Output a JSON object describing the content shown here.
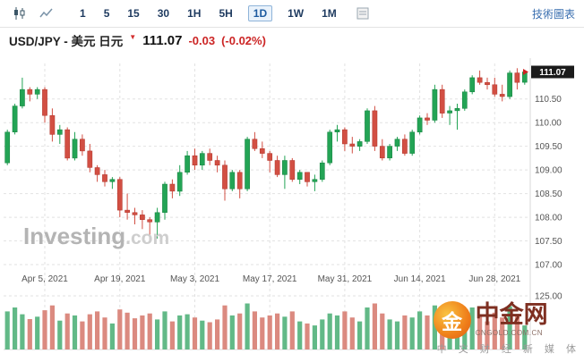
{
  "toolbar": {
    "timeframes": [
      "1",
      "5",
      "15",
      "30",
      "1H",
      "5H",
      "1D",
      "1W",
      "1M"
    ],
    "selected_timeframe": "1D",
    "right_link": "技術圖表"
  },
  "header": {
    "title": "USD/JPY - 美元 日元",
    "price": "111.07",
    "change": "-0.03",
    "change_pct": "(-0.02%)"
  },
  "watermark": {
    "bold": "Investing",
    "light": ".com"
  },
  "logo": {
    "name": "中金网",
    "coin_glyph": "金",
    "domain": "CNGOLD.COM.CN",
    "tagline": "中 文 财 经 新 媒 体"
  },
  "chart_data": {
    "type": "candlestick",
    "symbol": "USD/JPY",
    "interval": "1D",
    "last_price_label": "111.07",
    "price_axis_min": 107.0,
    "price_axis_max": 111.25,
    "price_ticks": [
      110.5,
      110.0,
      109.5,
      109.0,
      108.5,
      108.0,
      107.5,
      107.0
    ],
    "price_tick_labels": [
      "110.50",
      "110.00",
      "109.50",
      "109.00",
      "108.50",
      "108.00",
      "107.50",
      "107.00"
    ],
    "volume_axis_max": 125,
    "volume_axis_label": "125.00",
    "x_tick_indices": [
      5,
      15,
      25,
      35,
      45,
      55,
      65
    ],
    "x_tick_labels": [
      "Apr 5, 2021",
      "Apr 19, 2021",
      "May 3, 2021",
      "May 17, 2021",
      "May 31, 2021",
      "Jun 14, 2021",
      "Jun 28, 2021"
    ],
    "colors": {
      "up": "#23a455",
      "up_border": "#14803e",
      "down": "#d24f43",
      "down_border": "#b03228",
      "vol_up": "#62b987",
      "vol_down": "#db8a80",
      "badge_bg": "#1b1b1b",
      "marker": "#cc2222"
    },
    "dates": [
      "2021-03-29",
      "2021-03-30",
      "2021-03-31",
      "2021-04-01",
      "2021-04-02",
      "2021-04-05",
      "2021-04-06",
      "2021-04-07",
      "2021-04-08",
      "2021-04-09",
      "2021-04-12",
      "2021-04-13",
      "2021-04-14",
      "2021-04-15",
      "2021-04-16",
      "2021-04-19",
      "2021-04-20",
      "2021-04-21",
      "2021-04-22",
      "2021-04-23",
      "2021-04-26",
      "2021-04-27",
      "2021-04-28",
      "2021-04-29",
      "2021-04-30",
      "2021-05-03",
      "2021-05-04",
      "2021-05-05",
      "2021-05-06",
      "2021-05-07",
      "2021-05-10",
      "2021-05-11",
      "2021-05-12",
      "2021-05-13",
      "2021-05-14",
      "2021-05-17",
      "2021-05-18",
      "2021-05-19",
      "2021-05-20",
      "2021-05-21",
      "2021-05-24",
      "2021-05-25",
      "2021-05-26",
      "2021-05-27",
      "2021-05-28",
      "2021-05-31",
      "2021-06-01",
      "2021-06-02",
      "2021-06-03",
      "2021-06-04",
      "2021-06-07",
      "2021-06-08",
      "2021-06-09",
      "2021-06-10",
      "2021-06-11",
      "2021-06-14",
      "2021-06-15",
      "2021-06-16",
      "2021-06-17",
      "2021-06-18",
      "2021-06-21",
      "2021-06-22",
      "2021-06-23",
      "2021-06-24",
      "2021-06-25",
      "2021-06-28",
      "2021-06-29",
      "2021-06-30",
      "2021-07-01",
      "2021-07-02"
    ],
    "ohlc": [
      [
        109.15,
        109.85,
        109.1,
        109.8
      ],
      [
        109.8,
        110.4,
        109.75,
        110.35
      ],
      [
        110.35,
        110.95,
        110.3,
        110.7
      ],
      [
        110.7,
        110.75,
        110.45,
        110.6
      ],
      [
        110.6,
        110.75,
        110.5,
        110.7
      ],
      [
        110.7,
        110.75,
        110.0,
        110.15
      ],
      [
        110.15,
        110.3,
        109.6,
        109.75
      ],
      [
        109.75,
        109.95,
        109.55,
        109.85
      ],
      [
        109.85,
        109.9,
        109.2,
        109.25
      ],
      [
        109.25,
        109.8,
        109.2,
        109.65
      ],
      [
        109.65,
        109.75,
        109.3,
        109.4
      ],
      [
        109.4,
        109.55,
        108.95,
        109.05
      ],
      [
        109.05,
        109.1,
        108.75,
        108.9
      ],
      [
        108.9,
        109.0,
        108.65,
        108.75
      ],
      [
        108.75,
        108.85,
        108.6,
        108.8
      ],
      [
        108.8,
        108.85,
        108.0,
        108.15
      ],
      [
        108.15,
        108.5,
        107.95,
        108.1
      ],
      [
        108.1,
        108.2,
        107.85,
        108.05
      ],
      [
        108.05,
        108.15,
        107.75,
        107.95
      ],
      [
        107.95,
        108.0,
        107.5,
        107.9
      ],
      [
        107.9,
        108.2,
        107.55,
        108.1
      ],
      [
        108.1,
        108.75,
        107.95,
        108.7
      ],
      [
        108.7,
        108.8,
        108.4,
        108.55
      ],
      [
        108.55,
        109.1,
        108.45,
        108.95
      ],
      [
        108.95,
        109.4,
        108.9,
        109.3
      ],
      [
        109.3,
        109.45,
        109.0,
        109.1
      ],
      [
        109.1,
        109.4,
        109.0,
        109.35
      ],
      [
        109.35,
        109.45,
        109.1,
        109.2
      ],
      [
        109.2,
        109.3,
        108.95,
        109.1
      ],
      [
        109.1,
        109.2,
        108.35,
        108.6
      ],
      [
        108.6,
        109.0,
        108.55,
        108.95
      ],
      [
        108.95,
        109.0,
        108.4,
        108.6
      ],
      [
        108.6,
        109.7,
        108.55,
        109.65
      ],
      [
        109.65,
        109.8,
        109.4,
        109.45
      ],
      [
        109.45,
        109.6,
        109.25,
        109.35
      ],
      [
        109.35,
        109.4,
        108.95,
        109.2
      ],
      [
        109.2,
        109.3,
        108.85,
        108.9
      ],
      [
        108.9,
        109.3,
        108.6,
        109.2
      ],
      [
        109.2,
        109.25,
        108.75,
        108.8
      ],
      [
        108.8,
        109.0,
        108.7,
        108.95
      ],
      [
        108.95,
        108.95,
        108.65,
        108.75
      ],
      [
        108.75,
        108.9,
        108.55,
        108.8
      ],
      [
        108.8,
        109.2,
        108.75,
        109.15
      ],
      [
        109.15,
        109.85,
        109.1,
        109.8
      ],
      [
        109.8,
        109.95,
        109.6,
        109.85
      ],
      [
        109.85,
        109.9,
        109.4,
        109.55
      ],
      [
        109.55,
        109.7,
        109.35,
        109.5
      ],
      [
        109.5,
        109.65,
        109.4,
        109.6
      ],
      [
        109.6,
        110.3,
        109.55,
        110.25
      ],
      [
        110.25,
        110.35,
        109.4,
        109.5
      ],
      [
        109.5,
        109.65,
        109.2,
        109.25
      ],
      [
        109.25,
        109.55,
        109.2,
        109.5
      ],
      [
        109.5,
        109.7,
        109.4,
        109.65
      ],
      [
        109.65,
        109.75,
        109.3,
        109.35
      ],
      [
        109.35,
        109.85,
        109.3,
        109.8
      ],
      [
        109.8,
        110.15,
        109.75,
        110.1
      ],
      [
        110.1,
        110.2,
        109.95,
        110.05
      ],
      [
        110.05,
        110.8,
        110.0,
        110.7
      ],
      [
        110.7,
        110.8,
        110.1,
        110.2
      ],
      [
        110.2,
        110.35,
        109.95,
        110.25
      ],
      [
        110.25,
        110.4,
        109.85,
        110.3
      ],
      [
        110.3,
        110.7,
        110.25,
        110.65
      ],
      [
        110.65,
        111.0,
        110.6,
        110.95
      ],
      [
        110.95,
        111.1,
        110.8,
        110.85
      ],
      [
        110.85,
        110.95,
        110.7,
        110.8
      ],
      [
        110.8,
        110.95,
        110.55,
        110.6
      ],
      [
        110.6,
        110.8,
        110.45,
        110.55
      ],
      [
        110.55,
        111.1,
        110.5,
        111.05
      ],
      [
        111.05,
        111.15,
        110.7,
        110.85
      ],
      [
        110.85,
        111.1,
        110.8,
        111.07
      ]
    ],
    "volumes": [
      95,
      105,
      88,
      76,
      82,
      98,
      110,
      72,
      90,
      85,
      70,
      88,
      95,
      80,
      65,
      100,
      92,
      78,
      85,
      90,
      75,
      95,
      70,
      85,
      88,
      80,
      72,
      68,
      75,
      110,
      85,
      90,
      115,
      95,
      80,
      85,
      90,
      82,
      95,
      70,
      65,
      60,
      75,
      90,
      85,
      95,
      80,
      70,
      105,
      115,
      90,
      75,
      70,
      85,
      80,
      95,
      85,
      110,
      100,
      75,
      90,
      95,
      105,
      88,
      70,
      92,
      80,
      108,
      85,
      60
    ]
  }
}
